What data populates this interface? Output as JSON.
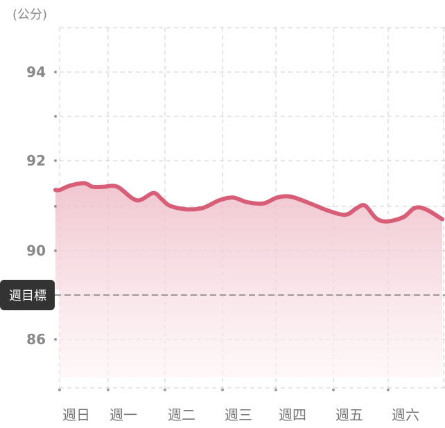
{
  "chart_data": {
    "type": "area",
    "unit_label": "(公分)",
    "y_tick_labels": [
      "94",
      "92",
      "90",
      "86"
    ],
    "y_tick_values": [
      94,
      92,
      90,
      86
    ],
    "x_tick_labels": [
      "週日",
      "週一",
      "週二",
      "週三",
      "週四",
      "週五",
      "週六"
    ],
    "ylim": [
      85,
      95
    ],
    "xlim": [
      0,
      7
    ],
    "goal": {
      "label": "週目標",
      "value": 88
    },
    "grid": true,
    "colors": {
      "line": "#d85e78",
      "fill": "#f2c9d2",
      "goal_line": "#999999",
      "goal_badge": "#333333",
      "grid": "#cccccc"
    },
    "series": [
      {
        "x": [
          0,
          0.2,
          0.45,
          0.6,
          0.8,
          1.05,
          1.4,
          1.7,
          1.85,
          2.0,
          2.3,
          2.6,
          2.9,
          3.15,
          3.4,
          3.7,
          3.95,
          4.2,
          4.55,
          4.9,
          5.2,
          5.4,
          5.55,
          5.75,
          5.95,
          6.25,
          6.45,
          6.65,
          6.95
        ],
        "y": [
          91.35,
          91.45,
          91.5,
          91.42,
          91.42,
          91.42,
          91.12,
          91.28,
          91.15,
          91.0,
          90.92,
          90.95,
          91.12,
          91.18,
          91.08,
          91.05,
          91.18,
          91.2,
          91.05,
          90.88,
          90.8,
          90.95,
          91.0,
          90.72,
          90.65,
          90.75,
          90.95,
          90.92,
          90.7
        ]
      }
    ]
  }
}
